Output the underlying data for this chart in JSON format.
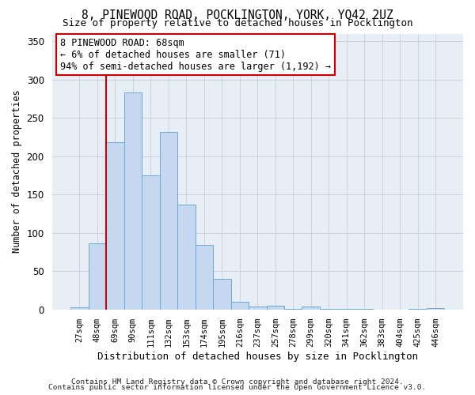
{
  "title_line1": "8, PINEWOOD ROAD, POCKLINGTON, YORK, YO42 2UZ",
  "title_line2": "Size of property relative to detached houses in Pocklington",
  "xlabel": "Distribution of detached houses by size in Pocklington",
  "ylabel": "Number of detached properties",
  "categories": [
    "27sqm",
    "48sqm",
    "69sqm",
    "90sqm",
    "111sqm",
    "132sqm",
    "153sqm",
    "174sqm",
    "195sqm",
    "216sqm",
    "237sqm",
    "257sqm",
    "278sqm",
    "299sqm",
    "320sqm",
    "341sqm",
    "362sqm",
    "383sqm",
    "404sqm",
    "425sqm",
    "446sqm"
  ],
  "values": [
    3,
    86,
    218,
    283,
    175,
    232,
    137,
    84,
    40,
    10,
    4,
    5,
    1,
    4,
    1,
    1,
    1,
    0,
    0,
    1,
    2
  ],
  "bar_color": "#c5d8ef",
  "bar_edge_color": "#6aaad4",
  "grid_color": "#c8d4e0",
  "background_color": "#e8eef5",
  "vline_color": "#cc0000",
  "vline_x": 1.5,
  "annotation_line1": "8 PINEWOOD ROAD: 68sqm",
  "annotation_line2": "← 6% of detached houses are smaller (71)",
  "annotation_line3": "94% of semi-detached houses are larger (1,192) →",
  "annotation_box_edge_color": "#cc0000",
  "footer_line1": "Contains HM Land Registry data © Crown copyright and database right 2024.",
  "footer_line2": "Contains public sector information licensed under the Open Government Licence v3.0.",
  "ylim_max": 360,
  "ytick_step": 50
}
